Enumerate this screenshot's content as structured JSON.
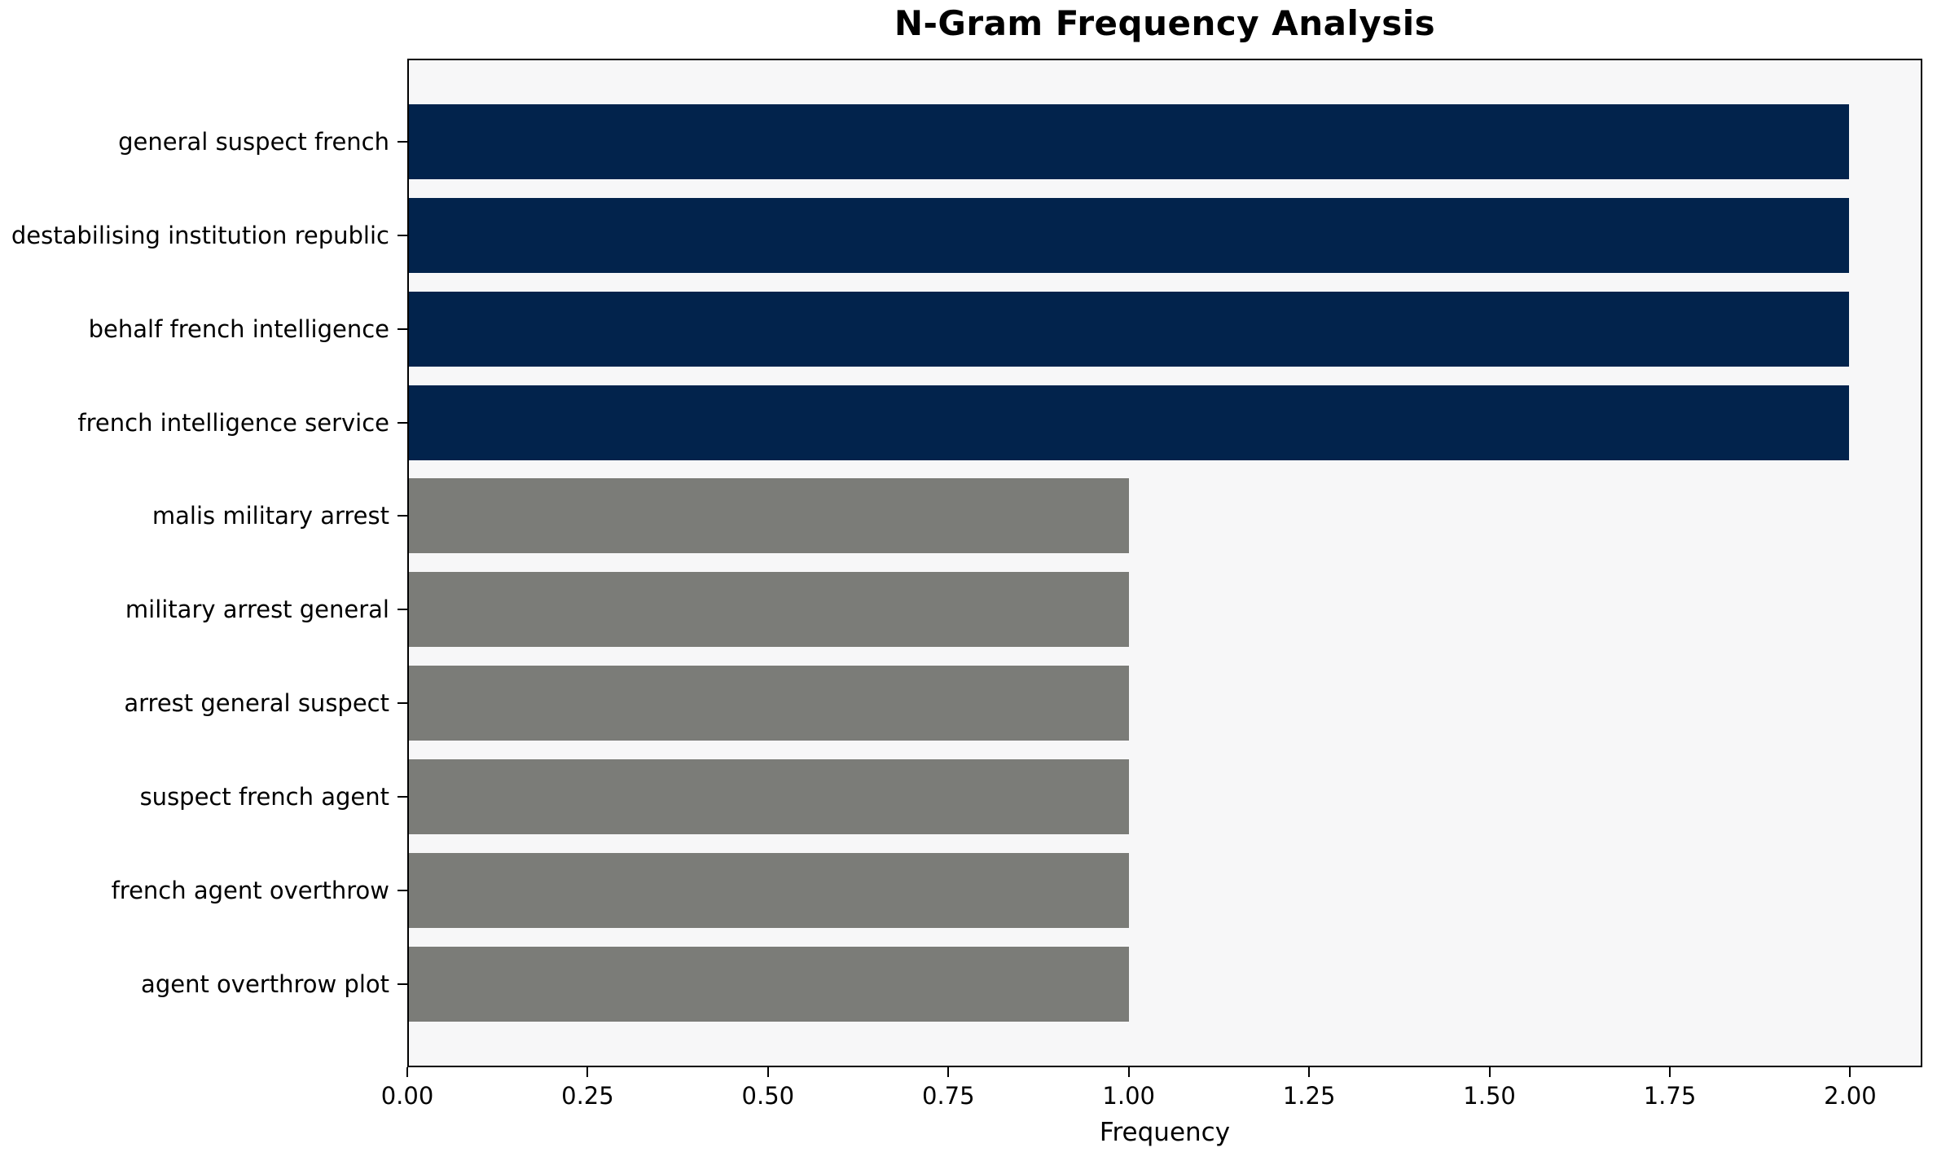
{
  "chart_data": {
    "type": "bar",
    "orientation": "horizontal",
    "title": "N-Gram Frequency Analysis",
    "xlabel": "Frequency",
    "ylabel": "",
    "categories": [
      "general suspect french",
      "destabilising institution republic",
      "behalf french intelligence",
      "french intelligence service",
      "malis military arrest",
      "military arrest general",
      "arrest general suspect",
      "suspect french agent",
      "french agent overthrow",
      "agent overthrow plot"
    ],
    "values": [
      2,
      2,
      2,
      2,
      1,
      1,
      1,
      1,
      1,
      1
    ],
    "bar_colors": [
      "#02234c",
      "#02234c",
      "#02234c",
      "#02234c",
      "#7b7c78",
      "#7b7c78",
      "#7b7c78",
      "#7b7c78",
      "#7b7c78",
      "#7b7c78"
    ],
    "x_ticks": [
      "0.00",
      "0.25",
      "0.50",
      "0.75",
      "1.00",
      "1.25",
      "1.50",
      "1.75",
      "2.00"
    ],
    "x_tick_values": [
      0,
      0.25,
      0.5,
      0.75,
      1.0,
      1.25,
      1.5,
      1.75,
      2.0
    ],
    "xlim": [
      0,
      2.1
    ],
    "grid": false,
    "legend_position": "none",
    "colors": {
      "highlight_bar": "#02234c",
      "default_bar": "#7b7c78",
      "plot_background": "#f7f7f8",
      "figure_background": "#ffffff",
      "spine": "#000000",
      "text": "#000000"
    }
  }
}
